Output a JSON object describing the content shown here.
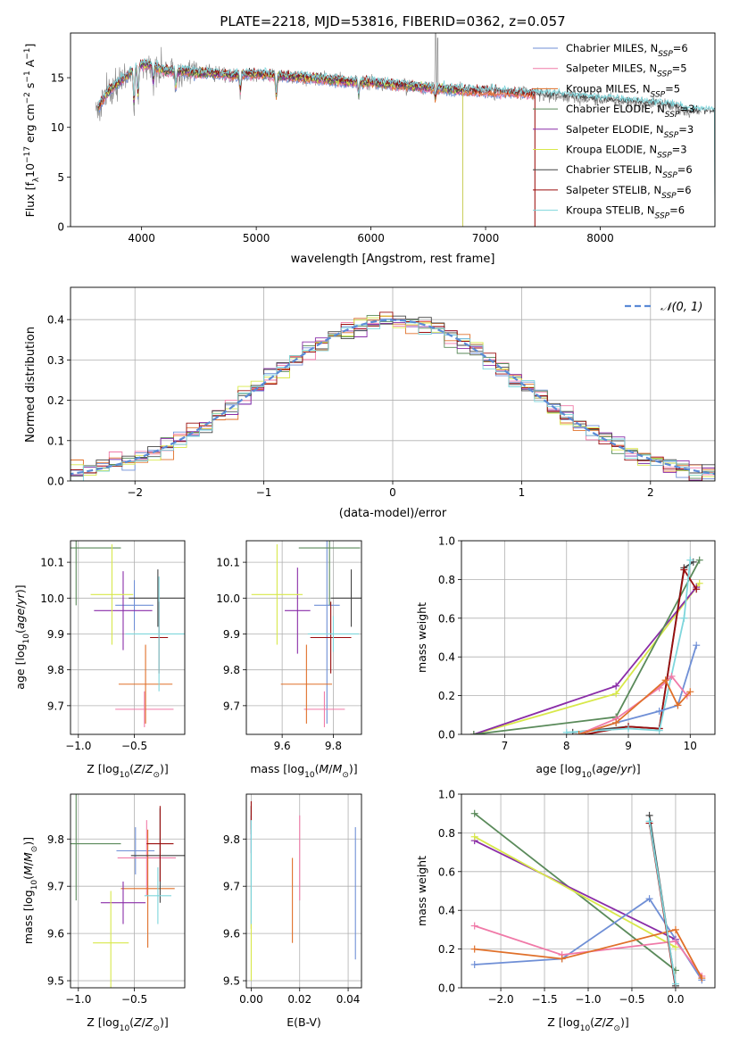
{
  "figure_title": "PLATE=2218, MJD=53816, FIBERID=0362, z=0.057",
  "colors": {
    "Chabrier MILES": "#6f8fd6",
    "Salpeter MILES": "#f07aa8",
    "Kroupa MILES": "#e0702a",
    "Chabrier ELODIE": "#5a8a5a",
    "Salpeter ELODIE": "#8a2da8",
    "Kroupa ELODIE": "#d8e84a",
    "Chabrier STELIB": "#444444",
    "Salpeter STELIB": "#9a0e0e",
    "Kroupa STELIB": "#7ed6dc",
    "normal_curve": "#5a8ad6",
    "grid": "#b0b0b0",
    "data_spectrum": "#808080"
  },
  "chart_data": [
    {
      "id": "spectrum",
      "type": "line",
      "xlabel": "wavelength [Angstrom, rest frame]",
      "ylabel": "Flux [f_λ 10^-17 erg cm^-2 s^-1 A^-1]",
      "xlim": [
        3380,
        9000
      ],
      "ylim": [
        0,
        19.5
      ],
      "xticks": [
        4000,
        5000,
        6000,
        7000,
        8000
      ],
      "yticks": [
        0,
        5,
        10,
        15
      ],
      "grid": false,
      "legend_position": "top-right",
      "legend": [
        "Chabrier MILES, N_SSP=6",
        "Salpeter MILES, N_SSP=5",
        "Kroupa MILES, N_SSP=5",
        "Chabrier ELODIE, N_SSP=3",
        "Salpeter ELODIE, N_SSP=3",
        "Kroupa ELODIE, N_SSP=3",
        "Chabrier STELIB, N_SSP=6",
        "Salpeter STELIB, N_SSP=6",
        "Kroupa STELIB, N_SSP=6"
      ],
      "continuum": {
        "wavelength": [
          3600,
          3700,
          3800,
          3900,
          4000,
          4100,
          4200,
          4300,
          4400,
          4500,
          4600,
          4800,
          5000,
          5200,
          5400,
          5600,
          5800,
          6000,
          6200,
          6400,
          6600,
          6800,
          7000,
          7200,
          7400,
          7600,
          7800,
          8000,
          8200,
          8400,
          8600,
          8800
        ],
        "flux": [
          11.5,
          13.5,
          14.5,
          15.5,
          16.3,
          16.2,
          15.7,
          15.6,
          15.6,
          15.4,
          15.5,
          15.2,
          15.4,
          15.2,
          15.0,
          14.8,
          14.6,
          14.5,
          14.3,
          14.1,
          13.9,
          13.7,
          13.6,
          13.5,
          13.4,
          13.2,
          13.0,
          12.8,
          12.6,
          12.4,
          12.2,
          11.6
        ]
      },
      "model_ends": [
        7430,
        7430,
        7430,
        6800,
        6800,
        6800,
        9000,
        7430,
        9000
      ]
    },
    {
      "id": "residuals",
      "type": "histogram",
      "xlabel": "(data-model)/error",
      "ylabel": "Normed distribution",
      "xlim": [
        -2.5,
        2.5
      ],
      "ylim": [
        0,
        0.48
      ],
      "xticks": [
        -2,
        -1,
        0,
        1,
        2
      ],
      "xticklabels": [
        "−2",
        "−1",
        "0",
        "1",
        "2"
      ],
      "yticks": [
        0.0,
        0.1,
        0.2,
        0.3,
        0.4
      ],
      "yticklabels": [
        "0.0",
        "0.1",
        "0.2",
        "0.3",
        "0.4"
      ],
      "grid": true,
      "legend_position": "top-right",
      "normal_label": "𝒩(0, 1)"
    },
    {
      "id": "age_vs_Z",
      "type": "errorbar",
      "xlabel": "Z [log10(Z/Z⊙)]",
      "ylabel": "age  [log10(age/yr)]",
      "xlim": [
        -1.07,
        -0.05
      ],
      "ylim": [
        9.62,
        10.16
      ],
      "xticks": [
        -1.0,
        -0.5
      ],
      "xticklabels": [
        "−1.0",
        "−0.5"
      ],
      "yticks": [
        9.7,
        9.8,
        9.9,
        10.0,
        10.1
      ],
      "yticklabels": [
        "9.7",
        "9.8",
        "9.9",
        "10.0",
        "10.1"
      ],
      "grid": true,
      "points": [
        {
          "model": "Chabrier MILES",
          "x": -0.5,
          "xerr": 0.17,
          "y": 9.98,
          "yerr": 0.07
        },
        {
          "model": "Salpeter MILES",
          "x": -0.41,
          "xerr": 0.26,
          "y": 9.69,
          "yerr": 0.05
        },
        {
          "model": "Kroupa MILES",
          "x": -0.4,
          "xerr": 0.24,
          "y": 9.76,
          "yerr": 0.11
        },
        {
          "model": "Chabrier ELODIE",
          "x": -1.02,
          "xerr": 0.4,
          "y": 10.14,
          "yerr": 0.16
        },
        {
          "model": "Salpeter ELODIE",
          "x": -0.6,
          "xerr": 0.26,
          "y": 9.965,
          "yerr": 0.11
        },
        {
          "model": "Kroupa ELODIE",
          "x": -0.7,
          "xerr": 0.19,
          "y": 10.01,
          "yerr": 0.14
        },
        {
          "model": "Chabrier STELIB",
          "x": -0.29,
          "xerr": 0.26,
          "y": 10.0,
          "yerr": 0.08
        },
        {
          "model": "Salpeter STELIB",
          "x": -0.28,
          "xerr": 0.08,
          "y": 9.89,
          "yerr": 0.1
        },
        {
          "model": "Kroupa STELIB",
          "x": -0.28,
          "xerr": 0.3,
          "y": 9.9,
          "yerr": 0.16
        }
      ]
    },
    {
      "id": "age_vs_mass",
      "type": "errorbar",
      "xlabel": "mass [log10(M/M⊙)]",
      "ylabel": "",
      "xlim": [
        9.46,
        9.91
      ],
      "ylim": [
        9.62,
        10.16
      ],
      "xticks": [
        9.6,
        9.8
      ],
      "xticklabels": [
        "9.6",
        "9.8"
      ],
      "yticks": [
        9.7,
        9.8,
        9.9,
        10.0,
        10.1
      ],
      "yticklabels": [
        "9.7",
        "9.8",
        "9.9",
        "10.0",
        "10.1"
      ],
      "grid": true,
      "points": [
        {
          "model": "Chabrier MILES",
          "x": 9.775,
          "xerr": 0.05,
          "y": 9.98,
          "yerr": 0.33
        },
        {
          "model": "Salpeter MILES",
          "x": 9.765,
          "xerr": 0.08,
          "y": 9.69,
          "yerr": 0.05
        },
        {
          "model": "Kroupa MILES",
          "x": 9.695,
          "xerr": 0.1,
          "y": 9.76,
          "yerr": 0.11
        },
        {
          "model": "Chabrier ELODIE",
          "x": 9.785,
          "xerr": 0.12,
          "y": 10.14,
          "yerr": 0.16
        },
        {
          "model": "Salpeter ELODIE",
          "x": 9.66,
          "xerr": 0.05,
          "y": 9.965,
          "yerr": 0.12
        },
        {
          "model": "Kroupa ELODIE",
          "x": 9.58,
          "xerr": 0.1,
          "y": 10.01,
          "yerr": 0.14
        },
        {
          "model": "Chabrier STELIB",
          "x": 9.87,
          "xerr": 0.08,
          "y": 10.0,
          "yerr": 0.08
        },
        {
          "model": "Salpeter STELIB",
          "x": 9.79,
          "xerr": 0.08,
          "y": 9.89,
          "yerr": 0.1
        },
        {
          "model": "Kroupa STELIB",
          "x": 9.8,
          "xerr": 0.1,
          "y": 9.9,
          "yerr": 0.05
        }
      ]
    },
    {
      "id": "weight_vs_age",
      "type": "line",
      "xlabel": "age  [log10(age/yr)]",
      "ylabel": "mass weight",
      "xlim": [
        6.3,
        10.4
      ],
      "ylim": [
        0,
        1
      ],
      "xticks": [
        7,
        8,
        9,
        10
      ],
      "yticks": [
        0,
        0.2,
        0.4,
        0.6,
        0.8,
        1.0
      ],
      "yticklabels": [
        "0.0",
        "0.2",
        "0.4",
        "0.6",
        "0.8",
        "1.0"
      ],
      "grid": true,
      "series": [
        {
          "model": "Kroupa ELODIE",
          "x": [
            6.5,
            8.8,
            10.15
          ],
          "y": [
            0.0,
            0.21,
            0.78
          ]
        },
        {
          "model": "Salpeter ELODIE",
          "x": [
            6.5,
            8.8,
            10.1
          ],
          "y": [
            0.0,
            0.25,
            0.76
          ]
        },
        {
          "model": "Chabrier ELODIE",
          "x": [
            6.5,
            8.8,
            10.15
          ],
          "y": [
            0.0,
            0.09,
            0.9
          ]
        },
        {
          "model": "Chabrier STELIB",
          "x": [
            8.1,
            9.0,
            9.5,
            9.9,
            10.05
          ],
          "y": [
            0.01,
            0.04,
            0.03,
            0.86,
            0.89
          ]
        },
        {
          "model": "Salpeter STELIB",
          "x": [
            8.3,
            9.0,
            9.5,
            9.9,
            10.1
          ],
          "y": [
            0.0,
            0.04,
            0.03,
            0.85,
            0.75
          ]
        },
        {
          "model": "Kroupa STELIB",
          "x": [
            8.0,
            9.0,
            9.5,
            9.9,
            10.0
          ],
          "y": [
            0.01,
            0.03,
            0.02,
            0.6,
            0.9
          ]
        },
        {
          "model": "Chabrier MILES",
          "x": [
            8.2,
            8.8,
            9.5,
            9.8,
            10.1
          ],
          "y": [
            0.0,
            0.06,
            0.12,
            0.15,
            0.46
          ]
        },
        {
          "model": "Salpeter MILES",
          "x": [
            8.2,
            8.8,
            9.5,
            9.7,
            9.95
          ],
          "y": [
            0.0,
            0.08,
            0.24,
            0.3,
            0.2
          ]
        },
        {
          "model": "Kroupa MILES",
          "x": [
            8.2,
            8.8,
            9.6,
            9.8,
            10.0
          ],
          "y": [
            0.0,
            0.06,
            0.28,
            0.15,
            0.22
          ]
        }
      ]
    },
    {
      "id": "mass_vs_Z",
      "type": "errorbar",
      "xlabel": "Z [log10(Z/Z⊙)]",
      "ylabel": "mass [log10(M/M⊙)]",
      "xlim": [
        -1.07,
        -0.05
      ],
      "ylim": [
        9.485,
        9.895
      ],
      "xticks": [
        -1.0,
        -0.5
      ],
      "xticklabels": [
        "−1.0",
        "−0.5"
      ],
      "yticks": [
        9.5,
        9.6,
        9.7,
        9.8
      ],
      "yticklabels": [
        "9.5",
        "9.6",
        "9.7",
        "9.8"
      ],
      "grid": true,
      "points": [
        {
          "model": "Chabrier MILES",
          "x": -0.49,
          "xerr": 0.17,
          "y": 9.775,
          "yerr": 0.05
        },
        {
          "model": "Salpeter MILES",
          "x": -0.39,
          "xerr": 0.26,
          "y": 9.76,
          "yerr": 0.08
        },
        {
          "model": "Kroupa MILES",
          "x": -0.38,
          "xerr": 0.24,
          "y": 9.695,
          "yerr": 0.125
        },
        {
          "model": "Chabrier ELODIE",
          "x": -1.02,
          "xerr": 0.4,
          "y": 9.79,
          "yerr": 0.12
        },
        {
          "model": "Salpeter ELODIE",
          "x": -0.6,
          "xerr": 0.2,
          "y": 9.665,
          "yerr": 0.045
        },
        {
          "model": "Kroupa ELODIE",
          "x": -0.71,
          "xerr": 0.16,
          "y": 9.58,
          "yerr": 0.11
        },
        {
          "model": "Chabrier STELIB",
          "x": -0.27,
          "xerr": 0.26,
          "y": 9.765,
          "yerr": 0.1
        },
        {
          "model": "Salpeter STELIB",
          "x": -0.27,
          "xerr": 0.12,
          "y": 9.79,
          "yerr": 0.08
        },
        {
          "model": "Kroupa STELIB",
          "x": -0.29,
          "xerr": 0.12,
          "y": 9.68,
          "yerr": 0.06
        }
      ]
    },
    {
      "id": "mass_vs_ebv",
      "type": "errorbar",
      "xlabel": "E(B-V)",
      "ylabel": "",
      "xlim": [
        -0.002,
        0.0455
      ],
      "ylim": [
        9.485,
        9.895
      ],
      "xticks": [
        0.0,
        0.02,
        0.04
      ],
      "xticklabels": [
        "0.00",
        "0.02",
        "0.04"
      ],
      "yticks": [
        9.5,
        9.6,
        9.7,
        9.8
      ],
      "yticklabels": [
        "9.5",
        "9.6",
        "9.7",
        "9.8"
      ],
      "grid": true,
      "points": [
        {
          "model": "Chabrier MILES",
          "x": 0.043,
          "xerr": 0,
          "y": 9.685,
          "yerr": 0.14
        },
        {
          "model": "Salpeter MILES",
          "x": 0.02,
          "xerr": 0,
          "y": 9.76,
          "yerr": 0.09
        },
        {
          "model": "Kroupa MILES",
          "x": 0.017,
          "xerr": 0,
          "y": 9.67,
          "yerr": 0.09
        },
        {
          "model": "Chabrier ELODIE",
          "x": 0.0,
          "xerr": 0,
          "y": 9.74,
          "yerr": 0.13
        },
        {
          "model": "Salpeter ELODIE",
          "x": 0.0,
          "xerr": 0,
          "y": 9.81,
          "yerr": 0.04
        },
        {
          "model": "Kroupa ELODIE",
          "x": 0.0,
          "xerr": 0,
          "y": 9.575,
          "yerr": 0.075
        },
        {
          "model": "Chabrier STELIB",
          "x": 0.0,
          "xerr": 0,
          "y": 9.84,
          "yerr": 0.03
        },
        {
          "model": "Salpeter STELIB",
          "x": 0.0,
          "xerr": 0,
          "y": 9.85,
          "yerr": 0.03
        },
        {
          "model": "Kroupa STELIB",
          "x": 0.0,
          "xerr": 0,
          "y": 9.73,
          "yerr": 0.11
        }
      ]
    },
    {
      "id": "weight_vs_Z",
      "type": "line",
      "xlabel": "Z [log10(Z/Z⊙)]",
      "ylabel": "mass weight",
      "xlim": [
        -2.45,
        0.45
      ],
      "ylim": [
        0,
        1
      ],
      "xticks": [
        -2.0,
        -1.5,
        -1.0,
        -0.5,
        0.0
      ],
      "xticklabels": [
        "−2.0",
        "−1.5",
        "−1.0",
        "−0.5",
        "0.0"
      ],
      "yticks": [
        0,
        0.2,
        0.4,
        0.6,
        0.8,
        1.0
      ],
      "yticklabels": [
        "0.0",
        "0.2",
        "0.4",
        "0.6",
        "0.8",
        "1.0"
      ],
      "grid": true,
      "series": [
        {
          "model": "Chabrier ELODIE",
          "x": [
            -2.3,
            0.0
          ],
          "y": [
            0.9,
            0.09
          ]
        },
        {
          "model": "Salpeter ELODIE",
          "x": [
            -2.3,
            0.0
          ],
          "y": [
            0.76,
            0.25
          ]
        },
        {
          "model": "Kroupa ELODIE",
          "x": [
            -2.3,
            0.0
          ],
          "y": [
            0.78,
            0.21
          ]
        },
        {
          "model": "Chabrier MILES",
          "x": [
            -2.3,
            -1.3,
            -0.3,
            0.3
          ],
          "y": [
            0.12,
            0.15,
            0.46,
            0.04
          ]
        },
        {
          "model": "Salpeter MILES",
          "x": [
            -2.3,
            -1.3,
            0.0,
            0.3
          ],
          "y": [
            0.32,
            0.17,
            0.24,
            0.06
          ]
        },
        {
          "model": "Kroupa MILES",
          "x": [
            -2.3,
            -1.3,
            0.0,
            0.3
          ],
          "y": [
            0.2,
            0.15,
            0.3,
            0.05
          ]
        },
        {
          "model": "Chabrier STELIB",
          "x": [
            -0.3,
            0.0
          ],
          "y": [
            0.89,
            0.01
          ]
        },
        {
          "model": "Salpeter STELIB",
          "x": [
            -0.3,
            0.0
          ],
          "y": [
            0.85,
            0.0
          ]
        },
        {
          "model": "Kroupa STELIB",
          "x": [
            -0.3,
            0.0
          ],
          "y": [
            0.86,
            0.02
          ]
        }
      ]
    }
  ]
}
